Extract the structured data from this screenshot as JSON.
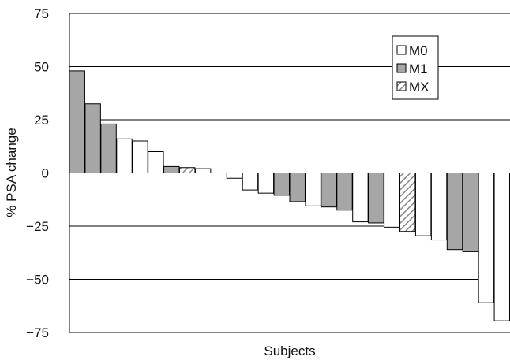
{
  "chart_data": {
    "type": "bar",
    "xlabel": "Subjects",
    "ylabel": "% PSA change",
    "ylim": [
      -75,
      75
    ],
    "yticks": [
      75,
      50,
      25,
      0,
      -25,
      -50,
      -75
    ],
    "ytick_labels": [
      "75",
      "50",
      "25",
      "0",
      "−25",
      "−50",
      "−75"
    ],
    "grid": true,
    "legend_position": "top-right",
    "legend": [
      {
        "key": "M0",
        "label": "M0"
      },
      {
        "key": "M1",
        "label": "M1"
      },
      {
        "key": "MX",
        "label": "MX"
      }
    ],
    "colors": {
      "M0": "#ffffff",
      "M1": "#a6a6a6",
      "MX": "hatch"
    },
    "bars": [
      {
        "group": "M1",
        "value": 48
      },
      {
        "group": "M1",
        "value": 32.5
      },
      {
        "group": "M1",
        "value": 23
      },
      {
        "group": "M0",
        "value": 16
      },
      {
        "group": "M0",
        "value": 15
      },
      {
        "group": "M0",
        "value": 10
      },
      {
        "group": "M1",
        "value": 3
      },
      {
        "group": "MX",
        "value": 2.5
      },
      {
        "group": "M0",
        "value": 2
      },
      {
        "group": "M0",
        "value": 0
      },
      {
        "group": "M0",
        "value": -2.5
      },
      {
        "group": "M0",
        "value": -8
      },
      {
        "group": "M0",
        "value": -9.5
      },
      {
        "group": "M1",
        "value": -10.5
      },
      {
        "group": "M1",
        "value": -13.5
      },
      {
        "group": "M0",
        "value": -15.5
      },
      {
        "group": "M1",
        "value": -16
      },
      {
        "group": "M1",
        "value": -17.5
      },
      {
        "group": "M0",
        "value": -23
      },
      {
        "group": "M1",
        "value": -23.5
      },
      {
        "group": "M0",
        "value": -25.5
      },
      {
        "group": "MX",
        "value": -27.5
      },
      {
        "group": "M0",
        "value": -29.5
      },
      {
        "group": "M0",
        "value": -31.5
      },
      {
        "group": "M1",
        "value": -36
      },
      {
        "group": "M1",
        "value": -37
      },
      {
        "group": "M0",
        "value": -61
      },
      {
        "group": "M0",
        "value": -69.5
      }
    ]
  }
}
